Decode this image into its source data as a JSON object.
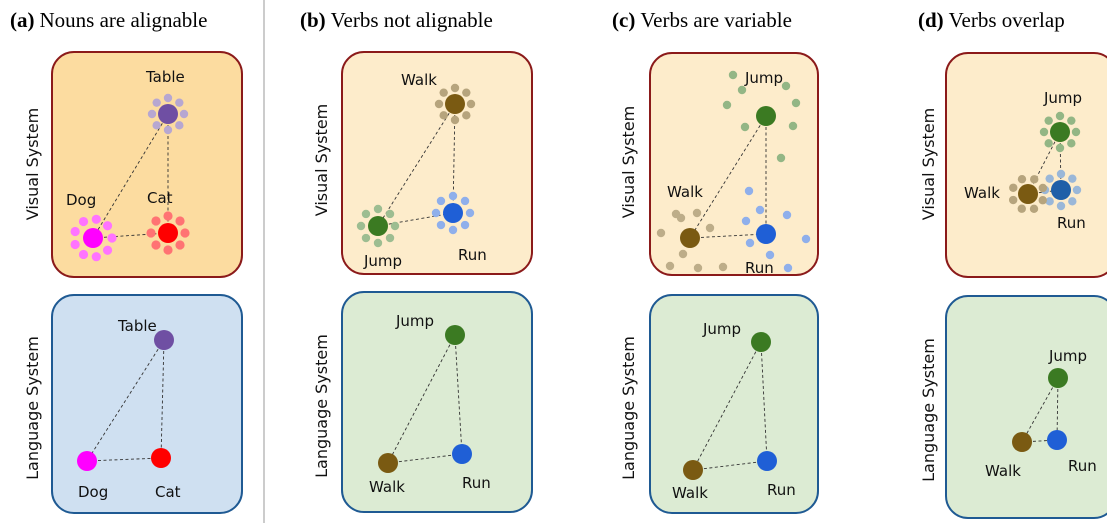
{
  "panels": [
    {
      "label": "(a)",
      "title": "Nouns are alignable",
      "visual_label": "Visual System",
      "language_label": "Language System",
      "visual_nodes": [
        {
          "name": "Table",
          "color": "#6f4fa3"
        },
        {
          "name": "Dog",
          "color": "#ff00ff"
        },
        {
          "name": "Cat",
          "color": "#ff0000"
        }
      ],
      "language_nodes": [
        {
          "name": "Table",
          "color": "#6f4fa3"
        },
        {
          "name": "Dog",
          "color": "#ff00ff"
        },
        {
          "name": "Cat",
          "color": "#ff0000"
        }
      ]
    },
    {
      "label": "(b)",
      "title": "Verbs not alignable",
      "visual_label": "Visual System",
      "language_label": "Language System",
      "visual_nodes": [
        {
          "name": "Walk",
          "color": "#7a5a12"
        },
        {
          "name": "Jump",
          "color": "#3b7a22"
        },
        {
          "name": "Run",
          "color": "#1f5fd6"
        }
      ],
      "language_nodes": [
        {
          "name": "Jump",
          "color": "#3b7a22"
        },
        {
          "name": "Walk",
          "color": "#7a5a12"
        },
        {
          "name": "Run",
          "color": "#1f5fd6"
        }
      ]
    },
    {
      "label": "(c)",
      "title": "Verbs are variable",
      "visual_label": "Visual System",
      "language_label": "Language System",
      "visual_nodes": [
        {
          "name": "Jump",
          "color": "#3b7a22"
        },
        {
          "name": "Walk",
          "color": "#7a5a12"
        },
        {
          "name": "Run",
          "color": "#1f5fd6"
        }
      ],
      "language_nodes": [
        {
          "name": "Jump",
          "color": "#3b7a22"
        },
        {
          "name": "Walk",
          "color": "#7a5a12"
        },
        {
          "name": "Run",
          "color": "#1f5fd6"
        }
      ]
    },
    {
      "label": "(d)",
      "title": "Verbs overlap",
      "visual_label": "Visual System",
      "language_label": "Language System",
      "visual_nodes": [
        {
          "name": "Jump",
          "color": "#3b7a22"
        },
        {
          "name": "Walk",
          "color": "#7a5a12"
        },
        {
          "name": "Run",
          "color": "#1f5fa8"
        }
      ],
      "language_nodes": [
        {
          "name": "Jump",
          "color": "#3b7a22"
        },
        {
          "name": "Walk",
          "color": "#7a5a12"
        },
        {
          "name": "Run",
          "color": "#1f5fd6"
        }
      ]
    }
  ]
}
